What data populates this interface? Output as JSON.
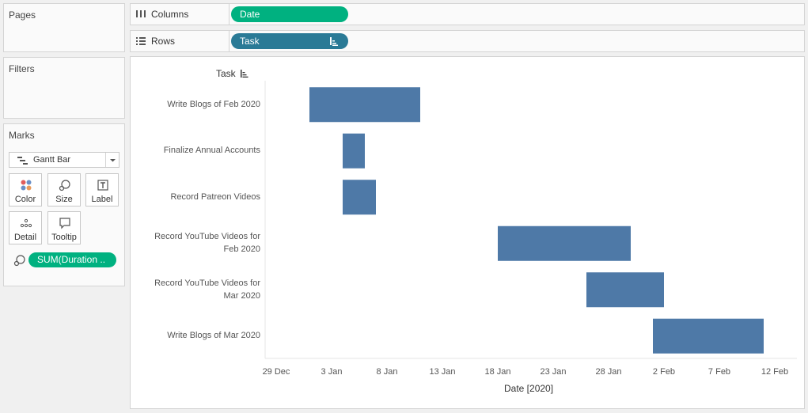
{
  "cards": {
    "pages": "Pages",
    "filters": "Filters",
    "marks": "Marks"
  },
  "shelves": {
    "columns": {
      "label": "Columns",
      "pill": "Date"
    },
    "rows": {
      "label": "Rows",
      "pill": "Task"
    }
  },
  "marks_card": {
    "mark_type": "Gantt Bar",
    "buttons": {
      "color": "Color",
      "size": "Size",
      "label": "Label",
      "detail": "Detail",
      "tooltip": "Tooltip"
    },
    "size_pill": "SUM(Duration .."
  },
  "colors": {
    "bar": "#4e79a7",
    "pill_green": "#00b180",
    "pill_blue": "#2a7a96"
  },
  "chart_data": {
    "type": "gantt",
    "row_header": "Task",
    "xlabel": "Date [2020]",
    "x_ticks": [
      "29 Dec",
      "3 Jan",
      "8 Jan",
      "13 Jan",
      "18 Jan",
      "23 Jan",
      "28 Jan",
      "2 Feb",
      "7 Feb",
      "12 Feb"
    ],
    "x_range": [
      "2019-12-28",
      "2020-02-14"
    ],
    "tasks": [
      {
        "name": "Write Blogs of Feb 2020",
        "start": "2020-01-01",
        "end": "2020-01-11"
      },
      {
        "name": "Finalize Annual Accounts",
        "start": "2020-01-04",
        "end": "2020-01-06"
      },
      {
        "name": "Record Patreon Videos",
        "start": "2020-01-04",
        "end": "2020-01-07"
      },
      {
        "name": "Record YouTube Videos for Feb 2020",
        "start": "2020-01-18",
        "end": "2020-01-30"
      },
      {
        "name": "Record YouTube Videos for Mar 2020",
        "start": "2020-01-26",
        "end": "2020-02-02"
      },
      {
        "name": "Write Blogs of Mar 2020",
        "start": "2020-02-01",
        "end": "2020-02-11"
      }
    ]
  }
}
